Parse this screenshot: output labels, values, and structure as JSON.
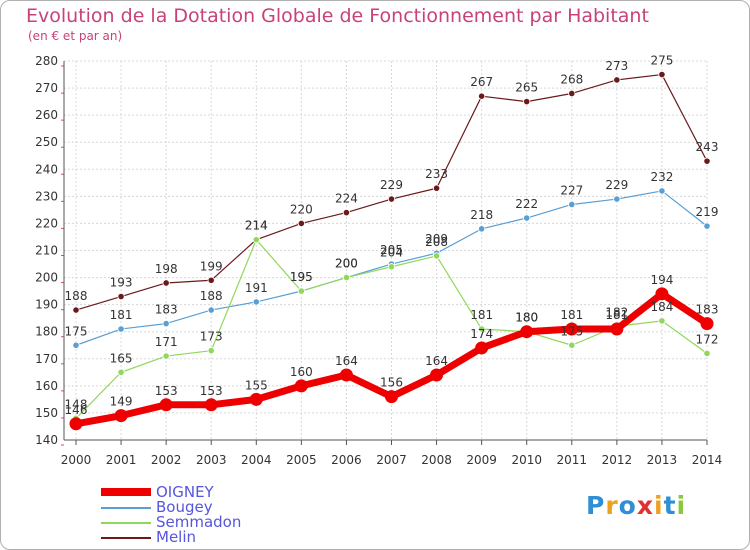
{
  "header": {
    "title": "Evolution de la Dotation Globale de Fonctionnement par Habitant",
    "subtitle": "(en € et par an)"
  },
  "brand": {
    "text": "Proxiti",
    "letters": [
      {
        "ch": "P",
        "color": "#2f8fd6"
      },
      {
        "ch": "r",
        "color": "#f0a020"
      },
      {
        "ch": "o",
        "color": "#2f8fd6"
      },
      {
        "ch": "x",
        "color": "#e03030"
      },
      {
        "ch": "i",
        "color": "#f0a020"
      },
      {
        "ch": "t",
        "color": "#2f8fd6"
      },
      {
        "ch": "i",
        "color": "#8cc63f"
      }
    ]
  },
  "chart_data": {
    "type": "line",
    "title": "Evolution de la Dotation Globale de Fonctionnement par Habitant",
    "subtitle": "(en € et par an)",
    "x": [
      2000,
      2001,
      2002,
      2003,
      2004,
      2005,
      2006,
      2007,
      2008,
      2009,
      2010,
      2011,
      2012,
      2013,
      2014
    ],
    "ylim": [
      140,
      280
    ],
    "yticks": [
      140,
      150,
      160,
      170,
      180,
      190,
      200,
      210,
      220,
      230,
      240,
      250,
      260,
      270,
      280
    ],
    "grid": true,
    "legend_position": "bottom-left",
    "series": [
      {
        "name": "Melin",
        "color": "#6b1a1a",
        "width": 1.2,
        "values": [
          188,
          193,
          198,
          199,
          214,
          220,
          224,
          229,
          233,
          267,
          265,
          268,
          273,
          275,
          243
        ]
      },
      {
        "name": "Bougey",
        "color": "#5a9fd4",
        "width": 1.2,
        "values": [
          175,
          181,
          183,
          188,
          191,
          195,
          200,
          205,
          209,
          218,
          222,
          227,
          229,
          232,
          219
        ]
      },
      {
        "name": "Semmadon",
        "color": "#90d85a",
        "width": 1.2,
        "values": [
          148,
          165,
          171,
          173,
          214,
          195,
          200,
          204,
          208,
          181,
          180,
          175,
          182,
          184,
          172
        ]
      },
      {
        "name": "OIGNEY",
        "color": "#ee0000",
        "width": 7,
        "values": [
          146,
          149,
          153,
          153,
          155,
          160,
          164,
          156,
          164,
          174,
          180,
          181,
          181,
          194,
          183
        ]
      }
    ]
  }
}
